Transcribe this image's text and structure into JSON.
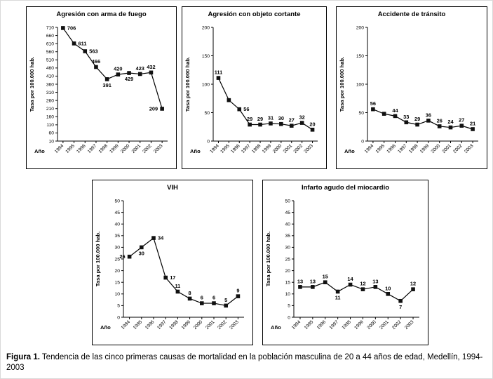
{
  "figure": {
    "caption_label": "Figura 1.",
    "caption_text": " Tendencia de las cinco primeras causas de mortalidad en la población masculina de 20 a 44 años de edad, Medellín, 1994-2003"
  },
  "chart_data": [
    {
      "type": "line",
      "title": "Agresión con arma de fuego",
      "xlabel": "Año",
      "ylabel": "Tasa por 100.000 hab.",
      "x": [
        "1994",
        "1995",
        "1996",
        "1997",
        "1998",
        "1999",
        "2000",
        "2001",
        "2002",
        "2003"
      ],
      "values": [
        706,
        611,
        563,
        466,
        391,
        420,
        429,
        423,
        432,
        209
      ],
      "labels": [
        "706",
        "611",
        "563",
        "466",
        "391",
        "420",
        "429",
        "423",
        "432",
        "209"
      ],
      "label_pos": [
        "right",
        "right",
        "right",
        "above",
        "below",
        "above",
        "below",
        "above",
        "above",
        "left"
      ],
      "yticks": [
        10,
        60,
        110,
        160,
        210,
        260,
        310,
        360,
        410,
        460,
        510,
        560,
        610,
        660,
        710
      ],
      "ylim": [
        10,
        710
      ],
      "grid": false,
      "legend": null
    },
    {
      "type": "line",
      "title": "Agresión con objeto cortante",
      "xlabel": "Año",
      "ylabel": "Tasa por 100.000 hab.",
      "x": [
        "1994",
        "1995",
        "1996",
        "1997",
        "1998",
        "1999",
        "2000",
        "2001",
        "2002",
        "2003"
      ],
      "values": [
        111,
        72,
        56,
        29,
        29,
        31,
        30,
        27,
        32,
        20
      ],
      "labels": [
        "111",
        null,
        "56",
        "29",
        "29",
        "31",
        "30",
        "27",
        "32",
        "20"
      ],
      "label_pos": [
        "above",
        null,
        "right",
        "above",
        "above",
        "above",
        "above",
        "above",
        "above",
        "above"
      ],
      "yticks": [
        0,
        50,
        100,
        150,
        200
      ],
      "ylim": [
        0,
        200
      ],
      "grid": false,
      "legend": null
    },
    {
      "type": "line",
      "title": "Accidente de tránsito",
      "xlabel": "Año",
      "ylabel": "Tasa por 100.000 hab.",
      "x": [
        "1994",
        "1995",
        "1996",
        "1997",
        "1998",
        "1999",
        "2000",
        "2001",
        "2002",
        "2003"
      ],
      "values": [
        56,
        48,
        44,
        33,
        29,
        36,
        26,
        24,
        27,
        21
      ],
      "labels": [
        "56",
        null,
        "44",
        "33",
        "29",
        "36",
        "26",
        "24",
        "27",
        "21"
      ],
      "label_pos": [
        "above",
        null,
        "above",
        "above",
        "above",
        "above",
        "above",
        "above",
        "above",
        "above"
      ],
      "yticks": [
        0,
        50,
        100,
        150,
        200
      ],
      "ylim": [
        0,
        200
      ],
      "grid": false,
      "legend": null
    },
    {
      "type": "line",
      "title": "VIH",
      "xlabel": "Año",
      "ylabel": "Tasa por 100.000 hab.",
      "x": [
        "1994",
        "1995",
        "1996",
        "1997",
        "1998",
        "1999",
        "2000",
        "2001",
        "2002",
        "2003"
      ],
      "values": [
        26,
        30,
        34,
        17,
        11,
        8,
        6,
        6,
        5,
        9
      ],
      "labels": [
        "26",
        "30",
        "34",
        "17",
        "11",
        "8",
        "6",
        "6",
        "5",
        "9"
      ],
      "label_pos": [
        "left",
        "below",
        "right",
        "right",
        "above",
        "above",
        "above",
        "above",
        "above",
        "above"
      ],
      "yticks": [
        0,
        5,
        10,
        15,
        20,
        25,
        30,
        35,
        40,
        45,
        50
      ],
      "ylim": [
        0,
        50
      ],
      "grid": false,
      "legend": null
    },
    {
      "type": "line",
      "title": "Infarto agudo del miocardio",
      "xlabel": "Año",
      "ylabel": "Tasa por 100.000 hab.",
      "x": [
        "1994",
        "1995",
        "1996",
        "1997",
        "1998",
        "1999",
        "2000",
        "2001",
        "2002",
        "2003"
      ],
      "values": [
        13,
        13,
        15,
        11,
        14,
        12,
        13,
        10,
        7,
        12
      ],
      "labels": [
        "13",
        "13",
        "15",
        "11",
        "14",
        "12",
        "13",
        "10",
        "7",
        "12"
      ],
      "label_pos": [
        "above",
        "above",
        "above",
        "below",
        "above",
        "above",
        "above",
        "above",
        "below",
        "above"
      ],
      "yticks": [
        0,
        5,
        10,
        15,
        20,
        25,
        30,
        35,
        40,
        45,
        50
      ],
      "ylim": [
        0,
        50
      ],
      "grid": false,
      "legend": null
    }
  ]
}
